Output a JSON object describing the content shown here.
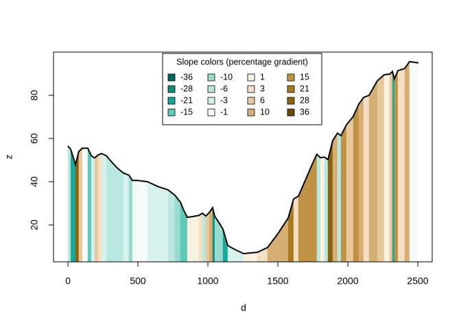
{
  "chart_data": {
    "type": "slope-profile",
    "xlabel": "d",
    "ylabel": "z",
    "x": [
      0,
      20,
      39,
      54,
      78,
      103,
      142,
      167,
      191,
      216,
      240,
      275,
      314,
      358,
      397,
      436,
      461,
      495,
      569,
      642,
      716,
      765,
      804,
      828,
      853,
      887,
      936,
      961,
      985,
      1010,
      1034,
      1049,
      1074,
      1108,
      1142,
      1181,
      1255,
      1353,
      1426,
      1500,
      1574,
      1613,
      1647,
      1696,
      1745,
      1779,
      1804,
      1833,
      1858,
      1892,
      1926,
      1951,
      1990,
      2039,
      2078,
      2113,
      2152,
      2211,
      2260,
      2299,
      2319,
      2333,
      2358,
      2407,
      2441,
      2505
    ],
    "values": [
      56.5,
      55,
      51,
      48,
      54,
      55.5,
      55.5,
      52,
      51,
      52.4,
      53,
      52,
      49,
      46,
      44,
      43,
      40.6,
      40.6,
      40,
      37.8,
      36.2,
      33.7,
      30.5,
      26.7,
      23.5,
      23.8,
      24.4,
      25.4,
      24.1,
      25.7,
      28,
      24,
      21.6,
      18,
      10.5,
      9,
      6.7,
      7.3,
      9.5,
      15.9,
      23.2,
      32,
      33.3,
      40.6,
      48,
      52.7,
      51.1,
      51.4,
      50.2,
      59,
      62.5,
      61.3,
      66.3,
      70.2,
      75.9,
      79,
      80,
      86.7,
      89.5,
      89.8,
      91,
      87.6,
      91.4,
      92.4,
      95.6,
      95
    ],
    "line_color": "#000000",
    "xlim": [
      -103,
      2603
    ],
    "ylim": [
      2.9,
      100
    ],
    "xticks": [
      0,
      500,
      1000,
      1500,
      2000,
      2500
    ],
    "yticks": [
      20,
      40,
      60,
      80
    ],
    "legend": {
      "title": "Slope colors (percentage gradient)",
      "items": [
        {
          "value": -36,
          "color": "#01665e"
        },
        {
          "value": -28,
          "color": "#0f8f80"
        },
        {
          "value": -21,
          "color": "#18a898"
        },
        {
          "value": -15,
          "color": "#5dc9b8"
        },
        {
          "value": -10,
          "color": "#97dbcf"
        },
        {
          "value": -6,
          "color": "#b9e8e0"
        },
        {
          "value": -3,
          "color": "#d7f2ed"
        },
        {
          "value": -1,
          "color": "#f3faf8"
        },
        {
          "value": 1,
          "color": "#fbf1e1"
        },
        {
          "value": 3,
          "color": "#f5dfc2"
        },
        {
          "value": 6,
          "color": "#e8c99c"
        },
        {
          "value": 10,
          "color": "#d5ae74"
        },
        {
          "value": 15,
          "color": "#c09245"
        },
        {
          "value": 21,
          "color": "#a87a22"
        },
        {
          "value": 28,
          "color": "#8c6210"
        },
        {
          "value": 36,
          "color": "#6b4a06"
        }
      ]
    }
  }
}
